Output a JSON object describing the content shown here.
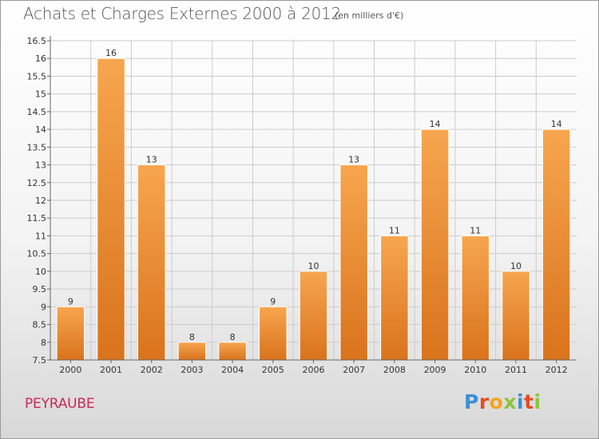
{
  "header": {
    "title": "Achats et Charges Externes 2000 à 2012",
    "subtitle": "(en milliers d'€)"
  },
  "footer": {
    "commune": "PEYRAUBE",
    "logo_letters": [
      "P",
      "r",
      "o",
      "x",
      "i",
      "t",
      "i"
    ]
  },
  "colors": {
    "bar_light": "#f7a64f",
    "bar_dark": "#d9731c",
    "grid": "#cccccc"
  },
  "chart_data": {
    "type": "bar",
    "categories": [
      "2000",
      "2001",
      "2002",
      "2003",
      "2004",
      "2005",
      "2006",
      "2007",
      "2008",
      "2009",
      "2010",
      "2011",
      "2012"
    ],
    "values": [
      9,
      16,
      13,
      8,
      8,
      9,
      10,
      13,
      11,
      14,
      11,
      10,
      14
    ],
    "title": "Achats et Charges Externes 2000 à 2012",
    "xlabel": "",
    "ylabel": "",
    "ylim": [
      7.5,
      16.5
    ],
    "yticks": [
      "7.5",
      "8",
      "8.5",
      "9",
      "9.5",
      "10",
      "10.5",
      "11",
      "11.5",
      "12",
      "12.5",
      "13",
      "13.5",
      "14",
      "14.5",
      "15",
      "15.5",
      "16",
      "16.5"
    ],
    "grid": true,
    "legend": "none"
  }
}
